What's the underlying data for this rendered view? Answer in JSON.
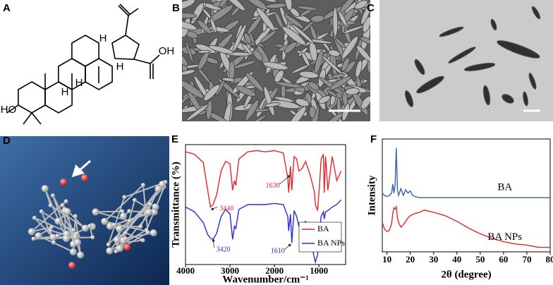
{
  "panels": {
    "labels": [
      "A",
      "B",
      "C",
      "D",
      "E",
      "F"
    ],
    "A": {
      "atom_labels": [
        "H",
        "H",
        "H",
        "H",
        "OH",
        "HO"
      ]
    }
  },
  "chart_data": [
    {
      "type": "line",
      "x_label": "Wavenumber/cm⁻¹",
      "y_label": "Transmittance (%)",
      "x": [
        4000,
        3800,
        3600,
        3500,
        3440,
        3380,
        3300,
        3200,
        3100,
        3000,
        2940,
        2900,
        2870,
        2800,
        2600,
        2400,
        2200,
        2000,
        1800,
        1700,
        1680,
        1640,
        1610,
        1560,
        1500,
        1450,
        1380,
        1300,
        1200,
        1100,
        1080,
        1030,
        980,
        950,
        900,
        880,
        850,
        800,
        700,
        600,
        500
      ],
      "series": [
        {
          "name": "BA",
          "color": "#e8262a",
          "values": [
            94,
            92,
            85,
            62,
            48,
            50,
            58,
            78,
            86,
            84,
            62,
            70,
            66,
            88,
            94,
            95,
            94,
            95,
            93,
            72,
            60,
            82,
            62,
            90,
            88,
            78,
            80,
            86,
            75,
            60,
            50,
            45,
            70,
            88,
            92,
            60,
            90,
            62,
            90,
            70,
            78
          ]
        },
        {
          "name": "BA NPs",
          "color": "#2b2bd9",
          "values": [
            48,
            44,
            35,
            25,
            22,
            21,
            26,
            40,
            46,
            42,
            21,
            32,
            30,
            46,
            50,
            50,
            50,
            51,
            50,
            40,
            28,
            42,
            18,
            45,
            40,
            32,
            33,
            36,
            22,
            5,
            2,
            8,
            30,
            40,
            44,
            38,
            44,
            45,
            48,
            50,
            54
          ]
        }
      ],
      "annotations": [
        {
          "x": 3440,
          "series": 0
        },
        {
          "x": 1630,
          "series": 0
        },
        {
          "x": 3420,
          "series": 1
        },
        {
          "x": 1610,
          "series": 1
        }
      ],
      "xlim": [
        4000,
        400
      ],
      "ylim": [
        0,
        100
      ],
      "xticks": [
        4000,
        3000,
        2000,
        1000
      ],
      "legend": "lower right"
    },
    {
      "type": "line",
      "x_label": "2θ (degree)",
      "y_label": "Intensity",
      "x": [
        8,
        9,
        10,
        11,
        12,
        12.5,
        13,
        13.5,
        14,
        14.5,
        15,
        16,
        17,
        18,
        19,
        20,
        21,
        22,
        24,
        26,
        28,
        30,
        35,
        40,
        45,
        50,
        55,
        60,
        65,
        70,
        75,
        80
      ],
      "series": [
        {
          "name": "BA",
          "color": "#3a63b0",
          "values": [
            52,
            50,
            49,
            50,
            52,
            60,
            52,
            60,
            92,
            55,
            50,
            56,
            50,
            55,
            52,
            54,
            50,
            49,
            48,
            48,
            48,
            48,
            48,
            48,
            48,
            48,
            48,
            48,
            48,
            48,
            48,
            48
          ]
        },
        {
          "name": "BA NPs",
          "color": "#e02828",
          "values": [
            26,
            20,
            18,
            19,
            25,
            34,
            39,
            38,
            40,
            30,
            26,
            22,
            24,
            27,
            30,
            32,
            33,
            34,
            35,
            37,
            36,
            35,
            32,
            27,
            21,
            16,
            12,
            9,
            7,
            6,
            4,
            4
          ]
        }
      ],
      "xlim": [
        8,
        80
      ],
      "ylim": [
        0,
        100
      ],
      "xticks": [
        10,
        20,
        30,
        40,
        50,
        60,
        70,
        80
      ],
      "legend": "inline"
    }
  ]
}
